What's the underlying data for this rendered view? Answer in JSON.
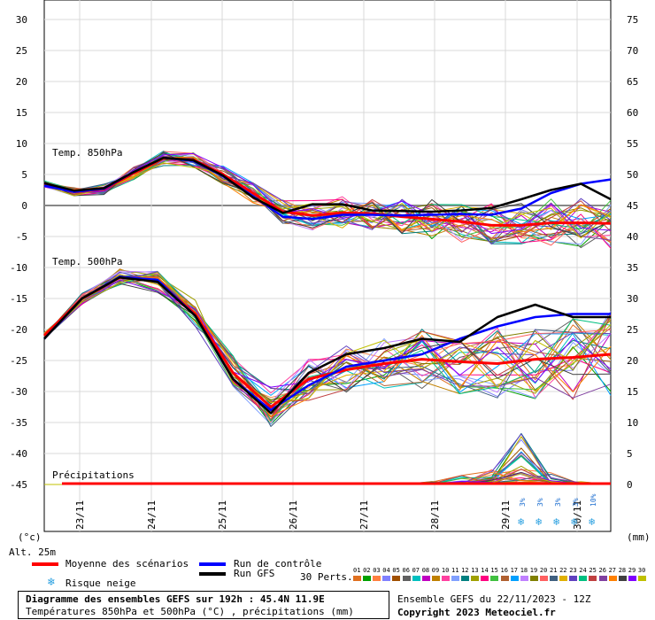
{
  "chart_data": {
    "type": "line",
    "y_left": {
      "label": "(°c)",
      "ticks": [
        "30",
        "25",
        "20",
        "15",
        "10",
        "5",
        "0",
        "-5",
        "-10",
        "-15",
        "-20",
        "-25",
        "-30",
        "-35",
        "-40",
        "-45"
      ]
    },
    "y_right": {
      "label": "(mm)",
      "ticks": [
        "75",
        "70",
        "65",
        "60",
        "55",
        "50",
        "45",
        "40",
        "35",
        "30",
        "25",
        "20",
        "15",
        "10",
        "5",
        "0"
      ]
    },
    "x_days": [
      "23/11",
      "24/11",
      "25/11",
      "26/11",
      "27/11",
      "28/11",
      "29/11",
      "30/11"
    ],
    "altitude": "Alt. 25m",
    "panels": [
      {
        "title": "Temp. 850hPa"
      },
      {
        "title": "Temp. 500hPa"
      },
      {
        "title": "Précipitations"
      }
    ],
    "snow_risk": [
      "3%",
      "3%",
      "3%",
      "3%",
      "10%"
    ],
    "series": [
      {
        "name": "Moyenne des scénarios",
        "color": "#ff0000",
        "t850": [
          3.5,
          2.2,
          2.6,
          5.2,
          7.6,
          7.4,
          5.0,
          2.0,
          -1.0,
          -1.6,
          -1.2,
          -1.3,
          -1.8,
          -2.2,
          -2.6,
          -3.2,
          -3.2,
          -2.8,
          -2.8,
          -2.9
        ],
        "t500": [
          -21,
          -15,
          -11.6,
          -12.2,
          -17.5,
          -27,
          -32.5,
          -28,
          -26.5,
          -25.5,
          -24.8,
          -25.2,
          -25.5,
          -24.8,
          -24.5,
          -24
        ]
      },
      {
        "name": "Run de contrôle",
        "color": "#0000ff",
        "t850": [
          3.2,
          2.2,
          2.7,
          5.4,
          7.7,
          7.2,
          4.7,
          1.5,
          -1.8,
          -2.2,
          -1.5,
          -1.5,
          -1.6,
          -1.5,
          -1.4,
          -1.5,
          -0.5,
          2.0,
          3.5,
          4.2
        ],
        "t500": [
          -21.5,
          -15,
          -11.5,
          -12,
          -17.8,
          -28,
          -33,
          -29,
          -26,
          -25,
          -24,
          -21.5,
          -19.5,
          -18,
          -17.5,
          -17.5
        ]
      },
      {
        "name": "Run GFS",
        "color": "#000000",
        "t850": [
          3.6,
          2.4,
          2.8,
          5.4,
          7.7,
          7.3,
          4.8,
          1.3,
          -1.2,
          0.2,
          0.2,
          -0.8,
          -0.9,
          -1.0,
          -0.8,
          -0.4,
          1.0,
          2.5,
          3.5,
          1.0
        ],
        "t500": [
          -21.5,
          -15,
          -11.6,
          -12.3,
          -17.8,
          -28,
          -33.5,
          -27,
          -24,
          -23,
          -21.5,
          -22,
          -18,
          -16,
          -18,
          -18
        ]
      }
    ],
    "precip_peak": [
      0,
      0,
      0,
      0,
      0,
      0,
      0,
      0,
      0,
      0,
      0,
      0,
      0,
      0.5,
      1.5,
      2.5,
      8.5,
      2.0,
      0.5,
      0
    ]
  },
  "legend": {
    "mean": "Moyenne des scénarios",
    "control": "Run de contrôle",
    "gfs": "Run GFS",
    "snow": "Risque neige",
    "perts": "30 Perts.",
    "pert_ids": [
      "01",
      "02",
      "03",
      "04",
      "05",
      "06",
      "07",
      "08",
      "09",
      "10",
      "11",
      "12",
      "13",
      "14",
      "15",
      "16",
      "17",
      "18",
      "19",
      "20",
      "21",
      "22",
      "23",
      "24",
      "25",
      "26",
      "27",
      "28",
      "29",
      "30"
    ],
    "pert_colors": [
      "#e07020",
      "#00a000",
      "#ff8040",
      "#8080ff",
      "#a05000",
      "#606060",
      "#00c0c0",
      "#c000c0",
      "#c08000",
      "#ff40a0",
      "#80a0ff",
      "#008080",
      "#a0a000",
      "#ff0080",
      "#40c040",
      "#b06030",
      "#00a0ff",
      "#c080ff",
      "#808000",
      "#ff6060",
      "#406080",
      "#e0b000",
      "#6040c0",
      "#00c080",
      "#c04040",
      "#8040a0",
      "#ff8000",
      "#404040",
      "#8000ff",
      "#c0c000"
    ]
  },
  "footer": {
    "title": "Diagramme des ensembles GEFS sur 192h : 45.4N 11.9E",
    "subtitle": "Températures 850hPa et 500hPa (°C) , précipitations (mm)",
    "run": "Ensemble GEFS du 22/11/2023 - 12Z",
    "copyright": "Copyright 2023 Meteociel.fr"
  }
}
